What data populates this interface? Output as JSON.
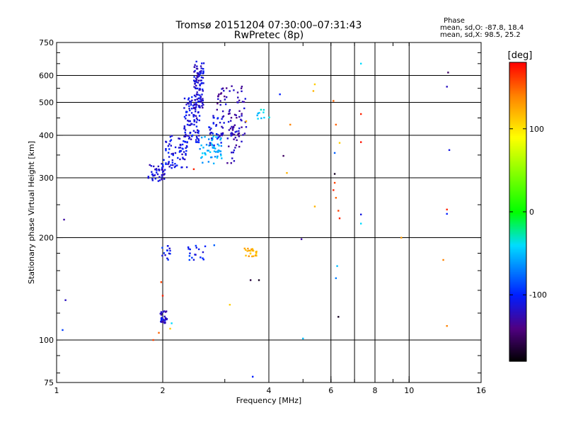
{
  "chart_data": {
    "type": "scatter",
    "title": "Tromsø 20151204 07:30:00–07:31:43",
    "subtitle": "RwPretec (8p)",
    "xlabel": "Frequency [MHz]",
    "ylabel": "Stationary phase Virtual Height [km]",
    "x_scale": "log",
    "y_scale": "log",
    "xlim": [
      1,
      16
    ],
    "ylim": [
      75,
      750
    ],
    "x_ticks": [
      1,
      2,
      4,
      6,
      8,
      10,
      16
    ],
    "y_ticks": [
      75,
      100,
      200,
      300,
      400,
      500,
      600,
      750
    ],
    "x_grid": [
      2,
      4,
      6,
      7,
      8,
      10
    ],
    "y_grid": [
      100,
      200,
      300,
      400,
      500,
      600
    ],
    "grid": true,
    "stats": {
      "heading": "Phase",
      "line1": "mean, sd,O: -87.8, 18.4",
      "line2": "mean, sd,X:  98.5, 25.2"
    },
    "colorbar": {
      "label": "[deg]",
      "range": [
        -180,
        180
      ],
      "ticks": [
        100,
        0,
        -100
      ],
      "colors": [
        "#ff0000",
        "#ff8000",
        "#ffff00",
        "#00ff00",
        "#00ffff",
        "#0000ff",
        "#400060",
        "#000000"
      ]
    },
    "clusters": [
      {
        "x": [
          1.82,
          2.03
        ],
        "y": [
          290,
          330
        ],
        "n": 45,
        "c": -115
      },
      {
        "x": [
          2.0,
          2.35
        ],
        "y": [
          320,
          400
        ],
        "n": 70,
        "c": -110
      },
      {
        "x": [
          2.3,
          2.55
        ],
        "y": [
          380,
          520
        ],
        "n": 100,
        "c": -110
      },
      {
        "x": [
          2.45,
          2.62
        ],
        "y": [
          480,
          660
        ],
        "n": 90,
        "c": -115
      },
      {
        "x": [
          2.55,
          2.95
        ],
        "y": [
          330,
          400
        ],
        "n": 55,
        "c": -55
      },
      {
        "x": [
          2.7,
          3.0
        ],
        "y": [
          370,
          460
        ],
        "n": 35,
        "c": -110
      },
      {
        "x": [
          2.85,
          3.45
        ],
        "y": [
          400,
          560
        ],
        "n": 70,
        "c": -125
      },
      {
        "x": [
          3.05,
          3.35
        ],
        "y": [
          330,
          430
        ],
        "n": 30,
        "c": -125
      },
      {
        "x": [
          1.97,
          2.06
        ],
        "y": [
          112,
          122
        ],
        "n": 32,
        "c": -115
      },
      {
        "x": [
          1.98,
          2.1
        ],
        "y": [
          172,
          190
        ],
        "n": 14,
        "c": -105
      },
      {
        "x": [
          2.35,
          2.65
        ],
        "y": [
          172,
          190
        ],
        "n": 18,
        "c": -100
      },
      {
        "x": [
          3.4,
          3.7
        ],
        "y": [
          176,
          186
        ],
        "n": 24,
        "c": 120
      },
      {
        "x": [
          3.7,
          4.05
        ],
        "y": [
          440,
          490
        ],
        "n": 10,
        "c": -40
      }
    ],
    "points": [
      {
        "x": 1.05,
        "y": 226,
        "c": -130
      },
      {
        "x": 1.06,
        "y": 131,
        "c": -120
      },
      {
        "x": 1.04,
        "y": 107,
        "c": -90
      },
      {
        "x": 1.88,
        "y": 100,
        "c": 160
      },
      {
        "x": 1.95,
        "y": 105,
        "c": 150
      },
      {
        "x": 1.98,
        "y": 148,
        "c": 160
      },
      {
        "x": 2.0,
        "y": 135,
        "c": 170
      },
      {
        "x": 2.1,
        "y": 108,
        "c": 110
      },
      {
        "x": 2.12,
        "y": 112,
        "c": -40
      },
      {
        "x": 2.45,
        "y": 318,
        "c": 170
      },
      {
        "x": 2.8,
        "y": 190,
        "c": -80
      },
      {
        "x": 3.1,
        "y": 127,
        "c": 110
      },
      {
        "x": 3.55,
        "y": 150,
        "c": -160
      },
      {
        "x": 3.75,
        "y": 150,
        "c": -170
      },
      {
        "x": 3.45,
        "y": 440,
        "c": 120
      },
      {
        "x": 3.6,
        "y": 78,
        "c": -100
      },
      {
        "x": 4.3,
        "y": 528,
        "c": -100
      },
      {
        "x": 4.4,
        "y": 348,
        "c": -150
      },
      {
        "x": 4.5,
        "y": 310,
        "c": 120
      },
      {
        "x": 4.6,
        "y": 430,
        "c": 140
      },
      {
        "x": 4.95,
        "y": 198,
        "c": -130
      },
      {
        "x": 5.0,
        "y": 101,
        "c": -50
      },
      {
        "x": 5.35,
        "y": 540,
        "c": 120
      },
      {
        "x": 5.4,
        "y": 565,
        "c": 110
      },
      {
        "x": 5.4,
        "y": 247,
        "c": 120
      },
      {
        "x": 6.1,
        "y": 505,
        "c": 150
      },
      {
        "x": 6.15,
        "y": 308,
        "c": -170
      },
      {
        "x": 6.15,
        "y": 290,
        "c": 160
      },
      {
        "x": 6.1,
        "y": 276,
        "c": 170
      },
      {
        "x": 6.15,
        "y": 355,
        "c": -80
      },
      {
        "x": 6.2,
        "y": 262,
        "c": 150
      },
      {
        "x": 6.3,
        "y": 240,
        "c": 160
      },
      {
        "x": 6.35,
        "y": 228,
        "c": 170
      },
      {
        "x": 6.2,
        "y": 430,
        "c": 150
      },
      {
        "x": 6.25,
        "y": 165,
        "c": -50
      },
      {
        "x": 6.2,
        "y": 152,
        "c": -70
      },
      {
        "x": 6.3,
        "y": 117,
        "c": -170
      },
      {
        "x": 6.35,
        "y": 380,
        "c": 110
      },
      {
        "x": 7.3,
        "y": 650,
        "c": -40
      },
      {
        "x": 7.3,
        "y": 462,
        "c": 170
      },
      {
        "x": 7.3,
        "y": 382,
        "c": 175
      },
      {
        "x": 7.3,
        "y": 234,
        "c": -110
      },
      {
        "x": 7.3,
        "y": 220,
        "c": -40
      },
      {
        "x": 9.5,
        "y": 200,
        "c": 130
      },
      {
        "x": 12.5,
        "y": 172,
        "c": 140
      },
      {
        "x": 12.8,
        "y": 110,
        "c": 140
      },
      {
        "x": 12.9,
        "y": 612,
        "c": -150
      },
      {
        "x": 12.8,
        "y": 556,
        "c": -120
      },
      {
        "x": 13.0,
        "y": 362,
        "c": -110
      },
      {
        "x": 12.8,
        "y": 242,
        "c": 170
      },
      {
        "x": 12.8,
        "y": 235,
        "c": -100
      }
    ]
  }
}
